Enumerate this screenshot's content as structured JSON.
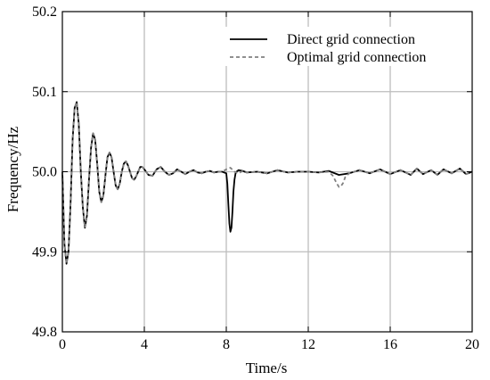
{
  "chart_data": {
    "type": "line",
    "xlabel": "Time/s",
    "ylabel": "Frequency/Hz",
    "xlim": [
      0,
      20
    ],
    "ylim": [
      49.8,
      50.2
    ],
    "x_ticks": [
      0,
      4,
      8,
      12,
      16,
      20
    ],
    "x_tick_labels": [
      "0",
      "4",
      "8",
      "12",
      "16",
      "20"
    ],
    "y_ticks": [
      49.8,
      49.9,
      50.0,
      50.1,
      50.2
    ],
    "y_tick_labels": [
      "49.8",
      "49.9",
      "50.0",
      "50.1",
      "50.2"
    ],
    "grid": true,
    "legend_position": "top-right",
    "series": [
      {
        "name": "Direct grid connection",
        "color": "#000000",
        "style": "solid",
        "x": [
          0,
          0.1,
          0.2,
          0.3,
          0.4,
          0.5,
          0.6,
          0.7,
          0.8,
          0.9,
          1.0,
          1.1,
          1.2,
          1.3,
          1.4,
          1.5,
          1.6,
          1.7,
          1.8,
          1.9,
          2.0,
          2.1,
          2.2,
          2.3,
          2.4,
          2.5,
          2.6,
          2.7,
          2.8,
          2.9,
          3.0,
          3.1,
          3.2,
          3.3,
          3.4,
          3.5,
          3.6,
          3.7,
          3.8,
          3.9,
          4.0,
          4.2,
          4.4,
          4.6,
          4.8,
          5.0,
          5.2,
          5.4,
          5.6,
          5.8,
          6.0,
          6.2,
          6.4,
          6.6,
          6.8,
          7.0,
          7.2,
          7.4,
          7.6,
          7.8,
          8.0,
          8.05,
          8.1,
          8.15,
          8.2,
          8.25,
          8.3,
          8.35,
          8.4,
          8.45,
          8.5,
          8.6,
          8.8,
          9.0,
          9.5,
          10.0,
          10.5,
          11.0,
          11.5,
          12.0,
          12.5,
          13.0,
          13.5,
          14.0,
          14.5,
          15.0,
          15.5,
          16.0,
          16.5,
          17.0,
          17.3,
          17.6,
          18.0,
          18.3,
          18.6,
          19.0,
          19.4,
          19.7,
          20.0
        ],
        "values": [
          50.0,
          49.91,
          49.885,
          49.9,
          49.96,
          50.04,
          50.08,
          50.087,
          50.06,
          50.0,
          49.955,
          49.93,
          49.945,
          49.99,
          50.03,
          50.048,
          50.04,
          50.01,
          49.975,
          49.962,
          49.97,
          49.995,
          50.018,
          50.024,
          50.018,
          50.0,
          49.983,
          49.978,
          49.985,
          50.0,
          50.01,
          50.013,
          50.008,
          50.0,
          49.992,
          49.99,
          49.994,
          50.0,
          50.006,
          50.006,
          50.003,
          49.996,
          49.995,
          50.003,
          50.006,
          50.0,
          49.996,
          49.998,
          50.003,
          50.0,
          49.997,
          50.0,
          50.002,
          49.999,
          49.998,
          50.0,
          50.001,
          49.999,
          50.0,
          50.0,
          49.998,
          49.985,
          49.96,
          49.935,
          49.925,
          49.93,
          49.95,
          49.975,
          49.99,
          49.998,
          50.0,
          50.002,
          50.001,
          49.999,
          50.0,
          49.998,
          50.002,
          49.999,
          50.0,
          50.0,
          49.999,
          50.001,
          49.996,
          49.998,
          50.002,
          49.998,
          50.003,
          49.997,
          50.002,
          49.996,
          50.004,
          49.997,
          50.002,
          49.996,
          50.003,
          49.998,
          50.004,
          49.997,
          50.0
        ]
      },
      {
        "name": "Optimal grid connection",
        "color": "#808080",
        "style": "dashed",
        "x": [
          0,
          0.1,
          0.2,
          0.3,
          0.4,
          0.5,
          0.6,
          0.7,
          0.8,
          0.9,
          1.0,
          1.1,
          1.2,
          1.3,
          1.4,
          1.5,
          1.6,
          1.7,
          1.8,
          1.9,
          2.0,
          2.1,
          2.2,
          2.3,
          2.4,
          2.5,
          2.6,
          2.7,
          2.8,
          2.9,
          3.0,
          3.1,
          3.2,
          3.3,
          3.4,
          3.5,
          3.6,
          3.7,
          3.8,
          3.9,
          4.0,
          4.2,
          4.4,
          4.6,
          4.8,
          5.0,
          5.2,
          5.4,
          5.6,
          5.8,
          6.0,
          6.2,
          6.4,
          6.6,
          6.8,
          7.0,
          7.2,
          7.4,
          7.6,
          7.8,
          8.0,
          8.2,
          8.4,
          8.6,
          8.8,
          9.0,
          9.5,
          10.0,
          10.5,
          11.0,
          11.5,
          12.0,
          12.5,
          13.0,
          13.2,
          13.4,
          13.5,
          13.6,
          13.7,
          13.8,
          14.0,
          14.5,
          15.0,
          15.5,
          16.0,
          16.5,
          17.0,
          17.3,
          17.6,
          18.0,
          18.3,
          18.6,
          19.0,
          19.4,
          19.7,
          20.0
        ],
        "values": [
          50.0,
          49.91,
          49.885,
          49.9,
          49.96,
          50.04,
          50.08,
          50.087,
          50.06,
          50.0,
          49.955,
          49.93,
          49.945,
          49.99,
          50.03,
          50.048,
          50.04,
          50.01,
          49.975,
          49.962,
          49.97,
          49.995,
          50.018,
          50.024,
          50.018,
          50.0,
          49.983,
          49.978,
          49.985,
          50.0,
          50.01,
          50.013,
          50.008,
          50.0,
          49.992,
          49.99,
          49.994,
          50.0,
          50.006,
          50.006,
          50.003,
          49.996,
          49.995,
          50.003,
          50.006,
          50.0,
          49.996,
          49.998,
          50.003,
          50.0,
          49.997,
          50.0,
          50.002,
          49.999,
          49.998,
          50.0,
          50.001,
          49.999,
          50.0,
          50.0,
          50.003,
          50.005,
          50.0,
          49.998,
          50.001,
          49.999,
          50.0,
          49.998,
          50.002,
          49.999,
          50.0,
          50.0,
          49.999,
          50.0,
          49.995,
          49.985,
          49.981,
          49.982,
          49.986,
          49.993,
          49.998,
          50.002,
          49.998,
          50.003,
          49.997,
          50.002,
          49.996,
          50.004,
          49.997,
          50.002,
          49.996,
          50.003,
          49.998,
          50.004,
          49.997,
          50.0
        ]
      }
    ]
  }
}
